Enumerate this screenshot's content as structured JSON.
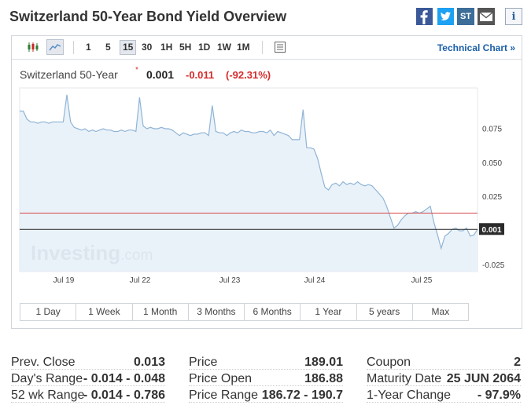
{
  "page": {
    "title": "Switzerland 50-Year Bond Yield Overview"
  },
  "share": {
    "facebook_icon": "facebook-icon",
    "twitter_icon": "twitter-icon",
    "st_label": "ST",
    "mail_icon": "mail-icon",
    "info_label": "i"
  },
  "toolbar": {
    "chart_types": [
      "candlestick-icon",
      "area-chart-icon"
    ],
    "active_chart_type": "area-chart-icon",
    "intervals": [
      "1",
      "5",
      "15",
      "30",
      "1H",
      "5H",
      "1D",
      "1W",
      "1M"
    ],
    "active_interval": "15",
    "table_icon": "table-icon",
    "technical_link": "Technical Chart »"
  },
  "instrument": {
    "name": "Switzerland 50-Year",
    "star": "*",
    "price": "0.001",
    "change": "-0.011",
    "change_pct": "(-92.31%)"
  },
  "chart_data": {
    "type": "area",
    "x_tick_labels": [
      "Jul 19",
      "Jul 22",
      "Jul 23",
      "Jul 24",
      "Jul 25"
    ],
    "y_tick_labels": [
      "0.075",
      "0.050",
      "0.025",
      "-0.025"
    ],
    "ylim": [
      -0.03,
      0.105
    ],
    "prev_close_line": 0.013,
    "current_value": 0.001,
    "current_label": "0.001",
    "watermark_bold": "Investing",
    "watermark_light": ".com",
    "line_color": "#8fb4d6",
    "fill_color": "#e3edf7",
    "prev_close_color": "#d64545",
    "series": [
      {
        "values": [
          0.088,
          0.088,
          0.082,
          0.08,
          0.08,
          0.079,
          0.08,
          0.08,
          0.079,
          0.08,
          0.08,
          0.08,
          0.08,
          0.1,
          0.08,
          0.076,
          0.075,
          0.074,
          0.075,
          0.073,
          0.074,
          0.073,
          0.074,
          0.075,
          0.074,
          0.074,
          0.073,
          0.073,
          0.074,
          0.073,
          0.074,
          0.074,
          0.073,
          0.098,
          0.077,
          0.075,
          0.076,
          0.075,
          0.075,
          0.076,
          0.075,
          0.075,
          0.074,
          0.072,
          0.07,
          0.072,
          0.071,
          0.07,
          0.071,
          0.071,
          0.072,
          0.072,
          0.07,
          0.092,
          0.073,
          0.072,
          0.072,
          0.07,
          0.072,
          0.073,
          0.072,
          0.074,
          0.073,
          0.073,
          0.072,
          0.072,
          0.073,
          0.073,
          0.072,
          0.074,
          0.07,
          0.073,
          0.072,
          0.071,
          0.07,
          0.067,
          0.067,
          0.067,
          0.089,
          0.061,
          0.061,
          0.06,
          0.053,
          0.042,
          0.032,
          0.03,
          0.034,
          0.035,
          0.033,
          0.036,
          0.034,
          0.035,
          0.034,
          0.036,
          0.034,
          0.033,
          0.034,
          0.033,
          0.03,
          0.027,
          0.024,
          0.018,
          0.01,
          0.002,
          0.004,
          0.008,
          0.011,
          0.013,
          0.013,
          0.014,
          0.013,
          0.014,
          0.016,
          0.018,
          0.006,
          -0.003,
          -0.013,
          -0.004,
          -0.002,
          0.001,
          0.002,
          0.0,
          0.0,
          0.002,
          -0.004,
          -0.003,
          0.001
        ]
      }
    ]
  },
  "ranges": [
    "1 Day",
    "1 Week",
    "1 Month",
    "3 Months",
    "6 Months",
    "1 Year",
    "5 years",
    "Max"
  ],
  "stats": {
    "col1": [
      {
        "label": "Prev. Close",
        "value": "0.013"
      },
      {
        "label": "Day's Range",
        "value": "- 0.014 - 0.048"
      },
      {
        "label": "52 wk Range",
        "value": "- 0.014 - 0.786"
      }
    ],
    "col2": [
      {
        "label": "Price",
        "value": "189.01"
      },
      {
        "label": "Price Open",
        "value": "186.88"
      },
      {
        "label": "Price Range",
        "value": "186.72 - 190.7"
      }
    ],
    "col3": [
      {
        "label": "Coupon",
        "value": "2"
      },
      {
        "label": "Maturity Date",
        "value": "25 JUN 2064"
      },
      {
        "label": "1-Year Change",
        "value": "- 97.9%"
      }
    ]
  }
}
